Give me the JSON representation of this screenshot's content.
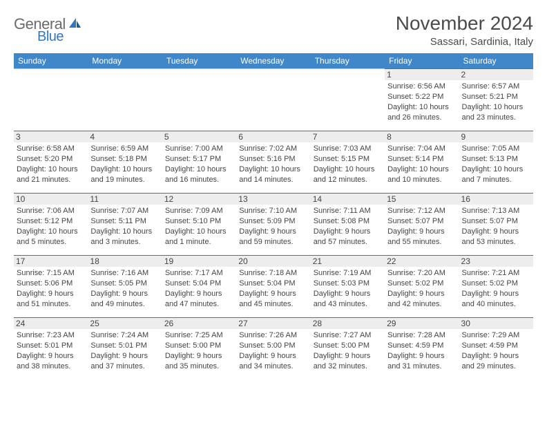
{
  "logo": {
    "word1": "General",
    "word2": "Blue",
    "text_color": "#6a6a6a",
    "accent_color": "#2f78bf"
  },
  "title": "November 2024",
  "location": "Sassari, Sardinia, Italy",
  "calendar": {
    "header_bg": "#3f87c9",
    "header_fg": "#ffffff",
    "daynum_bg": "#ededed",
    "border_color": "#6a6a6a",
    "day_names": [
      "Sunday",
      "Monday",
      "Tuesday",
      "Wednesday",
      "Thursday",
      "Friday",
      "Saturday"
    ],
    "weeks": [
      [
        null,
        null,
        null,
        null,
        null,
        {
          "n": "1",
          "sr": "Sunrise: 6:56 AM",
          "ss": "Sunset: 5:22 PM",
          "d1": "Daylight: 10 hours",
          "d2": "and 26 minutes."
        },
        {
          "n": "2",
          "sr": "Sunrise: 6:57 AM",
          "ss": "Sunset: 5:21 PM",
          "d1": "Daylight: 10 hours",
          "d2": "and 23 minutes."
        }
      ],
      [
        {
          "n": "3",
          "sr": "Sunrise: 6:58 AM",
          "ss": "Sunset: 5:20 PM",
          "d1": "Daylight: 10 hours",
          "d2": "and 21 minutes."
        },
        {
          "n": "4",
          "sr": "Sunrise: 6:59 AM",
          "ss": "Sunset: 5:18 PM",
          "d1": "Daylight: 10 hours",
          "d2": "and 19 minutes."
        },
        {
          "n": "5",
          "sr": "Sunrise: 7:00 AM",
          "ss": "Sunset: 5:17 PM",
          "d1": "Daylight: 10 hours",
          "d2": "and 16 minutes."
        },
        {
          "n": "6",
          "sr": "Sunrise: 7:02 AM",
          "ss": "Sunset: 5:16 PM",
          "d1": "Daylight: 10 hours",
          "d2": "and 14 minutes."
        },
        {
          "n": "7",
          "sr": "Sunrise: 7:03 AM",
          "ss": "Sunset: 5:15 PM",
          "d1": "Daylight: 10 hours",
          "d2": "and 12 minutes."
        },
        {
          "n": "8",
          "sr": "Sunrise: 7:04 AM",
          "ss": "Sunset: 5:14 PM",
          "d1": "Daylight: 10 hours",
          "d2": "and 10 minutes."
        },
        {
          "n": "9",
          "sr": "Sunrise: 7:05 AM",
          "ss": "Sunset: 5:13 PM",
          "d1": "Daylight: 10 hours",
          "d2": "and 7 minutes."
        }
      ],
      [
        {
          "n": "10",
          "sr": "Sunrise: 7:06 AM",
          "ss": "Sunset: 5:12 PM",
          "d1": "Daylight: 10 hours",
          "d2": "and 5 minutes."
        },
        {
          "n": "11",
          "sr": "Sunrise: 7:07 AM",
          "ss": "Sunset: 5:11 PM",
          "d1": "Daylight: 10 hours",
          "d2": "and 3 minutes."
        },
        {
          "n": "12",
          "sr": "Sunrise: 7:09 AM",
          "ss": "Sunset: 5:10 PM",
          "d1": "Daylight: 10 hours",
          "d2": "and 1 minute."
        },
        {
          "n": "13",
          "sr": "Sunrise: 7:10 AM",
          "ss": "Sunset: 5:09 PM",
          "d1": "Daylight: 9 hours",
          "d2": "and 59 minutes."
        },
        {
          "n": "14",
          "sr": "Sunrise: 7:11 AM",
          "ss": "Sunset: 5:08 PM",
          "d1": "Daylight: 9 hours",
          "d2": "and 57 minutes."
        },
        {
          "n": "15",
          "sr": "Sunrise: 7:12 AM",
          "ss": "Sunset: 5:07 PM",
          "d1": "Daylight: 9 hours",
          "d2": "and 55 minutes."
        },
        {
          "n": "16",
          "sr": "Sunrise: 7:13 AM",
          "ss": "Sunset: 5:07 PM",
          "d1": "Daylight: 9 hours",
          "d2": "and 53 minutes."
        }
      ],
      [
        {
          "n": "17",
          "sr": "Sunrise: 7:15 AM",
          "ss": "Sunset: 5:06 PM",
          "d1": "Daylight: 9 hours",
          "d2": "and 51 minutes."
        },
        {
          "n": "18",
          "sr": "Sunrise: 7:16 AM",
          "ss": "Sunset: 5:05 PM",
          "d1": "Daylight: 9 hours",
          "d2": "and 49 minutes."
        },
        {
          "n": "19",
          "sr": "Sunrise: 7:17 AM",
          "ss": "Sunset: 5:04 PM",
          "d1": "Daylight: 9 hours",
          "d2": "and 47 minutes."
        },
        {
          "n": "20",
          "sr": "Sunrise: 7:18 AM",
          "ss": "Sunset: 5:04 PM",
          "d1": "Daylight: 9 hours",
          "d2": "and 45 minutes."
        },
        {
          "n": "21",
          "sr": "Sunrise: 7:19 AM",
          "ss": "Sunset: 5:03 PM",
          "d1": "Daylight: 9 hours",
          "d2": "and 43 minutes."
        },
        {
          "n": "22",
          "sr": "Sunrise: 7:20 AM",
          "ss": "Sunset: 5:02 PM",
          "d1": "Daylight: 9 hours",
          "d2": "and 42 minutes."
        },
        {
          "n": "23",
          "sr": "Sunrise: 7:21 AM",
          "ss": "Sunset: 5:02 PM",
          "d1": "Daylight: 9 hours",
          "d2": "and 40 minutes."
        }
      ],
      [
        {
          "n": "24",
          "sr": "Sunrise: 7:23 AM",
          "ss": "Sunset: 5:01 PM",
          "d1": "Daylight: 9 hours",
          "d2": "and 38 minutes."
        },
        {
          "n": "25",
          "sr": "Sunrise: 7:24 AM",
          "ss": "Sunset: 5:01 PM",
          "d1": "Daylight: 9 hours",
          "d2": "and 37 minutes."
        },
        {
          "n": "26",
          "sr": "Sunrise: 7:25 AM",
          "ss": "Sunset: 5:00 PM",
          "d1": "Daylight: 9 hours",
          "d2": "and 35 minutes."
        },
        {
          "n": "27",
          "sr": "Sunrise: 7:26 AM",
          "ss": "Sunset: 5:00 PM",
          "d1": "Daylight: 9 hours",
          "d2": "and 34 minutes."
        },
        {
          "n": "28",
          "sr": "Sunrise: 7:27 AM",
          "ss": "Sunset: 5:00 PM",
          "d1": "Daylight: 9 hours",
          "d2": "and 32 minutes."
        },
        {
          "n": "29",
          "sr": "Sunrise: 7:28 AM",
          "ss": "Sunset: 4:59 PM",
          "d1": "Daylight: 9 hours",
          "d2": "and 31 minutes."
        },
        {
          "n": "30",
          "sr": "Sunrise: 7:29 AM",
          "ss": "Sunset: 4:59 PM",
          "d1": "Daylight: 9 hours",
          "d2": "and 29 minutes."
        }
      ]
    ]
  }
}
